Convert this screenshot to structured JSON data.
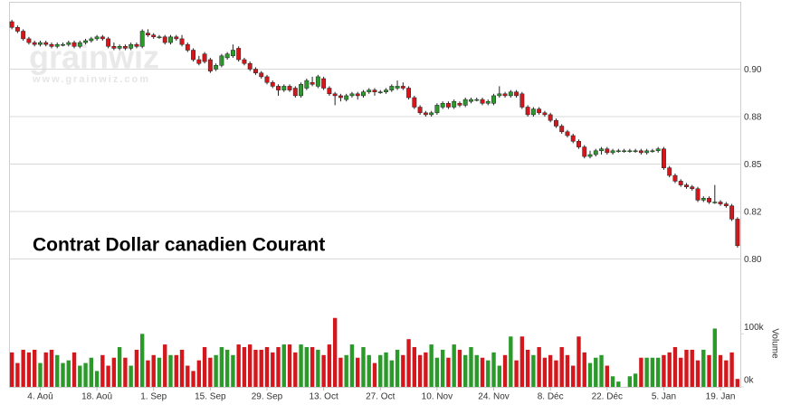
{
  "chart_data": {
    "type": "candlestick",
    "title": "Contrat Dollar canadien Courant",
    "watermark": {
      "logo": "grainwiz",
      "url": "www.grainwiz.com"
    },
    "volume_label": "Volume",
    "up_color": "#2b9a2b",
    "down_color": "#d4171c",
    "ylim": [
      0.775,
      0.935
    ],
    "yticks": [
      {
        "value": 0.8,
        "label": "0.80"
      },
      {
        "value": 0.825,
        "label": "0.82"
      },
      0.85,
      {
        "value": 0.875,
        "label": "0.88"
      },
      {
        "value": 0.9,
        "label": "0.90"
      }
    ],
    "volume_ylim": [
      0,
      150000
    ],
    "volume_ticks": [
      {
        "value": 0,
        "label": "0k"
      },
      {
        "value": 100000,
        "label": "100k"
      }
    ],
    "grid": true,
    "categories": [
      null,
      null,
      null,
      null,
      null,
      "4. Aoû",
      null,
      null,
      null,
      null,
      null,
      null,
      null,
      null,
      null,
      "18. Aoû",
      null,
      null,
      null,
      null,
      null,
      null,
      null,
      null,
      null,
      "1. Sep",
      null,
      null,
      null,
      null,
      null,
      null,
      null,
      null,
      null,
      "15. Sep",
      null,
      null,
      null,
      null,
      null,
      null,
      null,
      null,
      null,
      "29. Sep",
      null,
      null,
      null,
      null,
      null,
      null,
      null,
      null,
      null,
      "13. Oct",
      null,
      null,
      null,
      null,
      null,
      null,
      null,
      null,
      null,
      "27. Oct",
      null,
      null,
      null,
      null,
      null,
      null,
      null,
      null,
      null,
      "10. Nov",
      null,
      null,
      null,
      null,
      null,
      null,
      null,
      null,
      null,
      "24. Nov",
      null,
      null,
      null,
      null,
      null,
      null,
      null,
      null,
      null,
      "8. Déc",
      null,
      null,
      null,
      null,
      null,
      null,
      null,
      null,
      null,
      "22. Déc",
      null,
      null,
      null,
      null,
      null,
      null,
      null,
      null,
      null,
      "5. Jan",
      null,
      null,
      null,
      null,
      null,
      null,
      null,
      null,
      null,
      "19. Jan",
      null,
      null,
      null
    ],
    "ohlc": [
      [
        0.925,
        0.926,
        0.921,
        0.922
      ],
      [
        0.922,
        0.923,
        0.919,
        0.92
      ],
      [
        0.92,
        0.921,
        0.915,
        0.916
      ],
      [
        0.916,
        0.917,
        0.913,
        0.914
      ],
      [
        0.914,
        0.915,
        0.912,
        0.913
      ],
      [
        0.913,
        0.915,
        0.912,
        0.914
      ],
      [
        0.914,
        0.915,
        0.912,
        0.913
      ],
      [
        0.913,
        0.914,
        0.911,
        0.912
      ],
      [
        0.912,
        0.914,
        0.911,
        0.913
      ],
      [
        0.913,
        0.914,
        0.912,
        0.913
      ],
      [
        0.913,
        0.915,
        0.912,
        0.914
      ],
      [
        0.914,
        0.915,
        0.911,
        0.912
      ],
      [
        0.912,
        0.915,
        0.911,
        0.914
      ],
      [
        0.914,
        0.916,
        0.913,
        0.915
      ],
      [
        0.915,
        0.917,
        0.914,
        0.916
      ],
      [
        0.916,
        0.918,
        0.915,
        0.917
      ],
      [
        0.917,
        0.918,
        0.915,
        0.916
      ],
      [
        0.916,
        0.917,
        0.911,
        0.912
      ],
      [
        0.912,
        0.914,
        0.91,
        0.911
      ],
      [
        0.911,
        0.913,
        0.91,
        0.912
      ],
      [
        0.912,
        0.913,
        0.91,
        0.911
      ],
      [
        0.911,
        0.914,
        0.91,
        0.913
      ],
      [
        0.913,
        0.914,
        0.911,
        0.912
      ],
      [
        0.912,
        0.921,
        0.911,
        0.92
      ],
      [
        0.919,
        0.921,
        0.917,
        0.918
      ],
      [
        0.918,
        0.919,
        0.916,
        0.917
      ],
      [
        0.917,
        0.918,
        0.916,
        0.917
      ],
      [
        0.917,
        0.918,
        0.913,
        0.914
      ],
      [
        0.914,
        0.918,
        0.913,
        0.917
      ],
      [
        0.917,
        0.918,
        0.915,
        0.916
      ],
      [
        0.916,
        0.918,
        0.912,
        0.913
      ],
      [
        0.913,
        0.914,
        0.909,
        0.91
      ],
      [
        0.91,
        0.911,
        0.904,
        0.905
      ],
      [
        0.905,
        0.907,
        0.902,
        0.903
      ],
      [
        0.908,
        0.909,
        0.903,
        0.904
      ],
      [
        0.905,
        0.906,
        0.898,
        0.899
      ],
      [
        0.9,
        0.903,
        0.899,
        0.902
      ],
      [
        0.902,
        0.908,
        0.901,
        0.907
      ],
      [
        0.906,
        0.909,
        0.905,
        0.908
      ],
      [
        0.907,
        0.913,
        0.906,
        0.91
      ],
      [
        0.911,
        0.912,
        0.904,
        0.905
      ],
      [
        0.905,
        0.906,
        0.902,
        0.903
      ],
      [
        0.903,
        0.904,
        0.899,
        0.9
      ],
      [
        0.9,
        0.901,
        0.897,
        0.898
      ],
      [
        0.898,
        0.899,
        0.895,
        0.896
      ],
      [
        0.896,
        0.897,
        0.892,
        0.893
      ],
      [
        0.893,
        0.894,
        0.89,
        0.891
      ],
      [
        0.891,
        0.892,
        0.886,
        0.889
      ],
      [
        0.889,
        0.892,
        0.888,
        0.891
      ],
      [
        0.891,
        0.892,
        0.888,
        0.889
      ],
      [
        0.89,
        0.891,
        0.885,
        0.886
      ],
      [
        0.886,
        0.893,
        0.885,
        0.892
      ],
      [
        0.89,
        0.895,
        0.889,
        0.894
      ],
      [
        0.893,
        0.896,
        0.891,
        0.892
      ],
      [
        0.891,
        0.897,
        0.89,
        0.896
      ],
      [
        0.895,
        0.896,
        0.889,
        0.89
      ],
      [
        0.89,
        0.891,
        0.886,
        0.887
      ],
      [
        0.887,
        0.888,
        0.881,
        0.886
      ],
      [
        0.886,
        0.887,
        0.883,
        0.885
      ],
      [
        0.884,
        0.887,
        0.883,
        0.886
      ],
      [
        0.886,
        0.888,
        0.885,
        0.887
      ],
      [
        0.887,
        0.888,
        0.884,
        0.886
      ],
      [
        0.886,
        0.889,
        0.885,
        0.888
      ],
      [
        0.888,
        0.89,
        0.887,
        0.889
      ],
      [
        0.889,
        0.89,
        0.886,
        0.888
      ],
      [
        0.888,
        0.889,
        0.887,
        0.888
      ],
      [
        0.888,
        0.89,
        0.887,
        0.889
      ],
      [
        0.889,
        0.892,
        0.888,
        0.891
      ],
      [
        0.89,
        0.894,
        0.889,
        0.891
      ],
      [
        0.891,
        0.893,
        0.889,
        0.89
      ],
      [
        0.89,
        0.891,
        0.884,
        0.885
      ],
      [
        0.885,
        0.886,
        0.879,
        0.88
      ],
      [
        0.88,
        0.881,
        0.876,
        0.877
      ],
      [
        0.877,
        0.878,
        0.875,
        0.876
      ],
      [
        0.876,
        0.878,
        0.875,
        0.877
      ],
      [
        0.877,
        0.882,
        0.876,
        0.881
      ],
      [
        0.88,
        0.883,
        0.879,
        0.882
      ],
      [
        0.882,
        0.883,
        0.879,
        0.88
      ],
      [
        0.88,
        0.884,
        0.879,
        0.883
      ],
      [
        0.882,
        0.883,
        0.88,
        0.881
      ],
      [
        0.881,
        0.885,
        0.88,
        0.884
      ],
      [
        0.883,
        0.885,
        0.882,
        0.884
      ],
      [
        0.884,
        0.885,
        0.883,
        0.884
      ],
      [
        0.884,
        0.885,
        0.881,
        0.882
      ],
      [
        0.882,
        0.884,
        0.881,
        0.883
      ],
      [
        0.882,
        0.887,
        0.881,
        0.886
      ],
      [
        0.886,
        0.891,
        0.885,
        0.887
      ],
      [
        0.887,
        0.888,
        0.885,
        0.886
      ],
      [
        0.886,
        0.889,
        0.885,
        0.888
      ],
      [
        0.888,
        0.889,
        0.885,
        0.886
      ],
      [
        0.887,
        0.888,
        0.879,
        0.88
      ],
      [
        0.88,
        0.881,
        0.875,
        0.876
      ],
      [
        0.876,
        0.88,
        0.875,
        0.879
      ],
      [
        0.879,
        0.88,
        0.876,
        0.877
      ],
      [
        0.877,
        0.878,
        0.875,
        0.876
      ],
      [
        0.876,
        0.877,
        0.872,
        0.873
      ],
      [
        0.873,
        0.874,
        0.869,
        0.87
      ],
      [
        0.87,
        0.871,
        0.866,
        0.867
      ],
      [
        0.867,
        0.868,
        0.864,
        0.865
      ],
      [
        0.865,
        0.866,
        0.861,
        0.862
      ],
      [
        0.862,
        0.863,
        0.858,
        0.859
      ],
      [
        0.859,
        0.86,
        0.853,
        0.854
      ],
      [
        0.854,
        0.857,
        0.853,
        0.855
      ],
      [
        0.855,
        0.858,
        0.854,
        0.857
      ],
      [
        0.857,
        0.859,
        0.855,
        0.858
      ],
      [
        0.858,
        0.859,
        0.855,
        0.856
      ],
      [
        0.856,
        0.858,
        0.855,
        0.857
      ],
      [
        0.857,
        0.858,
        0.856,
        0.857
      ],
      [
        0.857,
        0.858,
        0.856,
        0.857
      ],
      [
        0.857,
        0.858,
        0.856,
        0.857
      ],
      [
        0.857,
        0.858,
        0.856,
        0.857
      ],
      [
        0.857,
        0.858,
        0.855,
        0.856
      ],
      [
        0.856,
        0.858,
        0.855,
        0.857
      ],
      [
        0.857,
        0.858,
        0.856,
        0.857
      ],
      [
        0.857,
        0.859,
        0.856,
        0.858
      ],
      [
        0.858,
        0.859,
        0.847,
        0.848
      ],
      [
        0.848,
        0.849,
        0.843,
        0.844
      ],
      [
        0.844,
        0.845,
        0.84,
        0.841
      ],
      [
        0.841,
        0.842,
        0.838,
        0.839
      ],
      [
        0.839,
        0.84,
        0.837,
        0.838
      ],
      [
        0.838,
        0.839,
        0.836,
        0.837
      ],
      [
        0.837,
        0.838,
        0.83,
        0.831
      ],
      [
        0.831,
        0.833,
        0.83,
        0.832
      ],
      [
        0.832,
        0.833,
        0.829,
        0.83
      ],
      [
        0.83,
        0.839,
        0.829,
        0.83
      ],
      [
        0.83,
        0.831,
        0.828,
        0.829
      ],
      [
        0.829,
        0.83,
        0.827,
        0.828
      ],
      [
        0.828,
        0.829,
        0.82,
        0.821
      ],
      [
        0.821,
        0.822,
        0.806,
        0.807
      ]
    ],
    "volume": [
      65000,
      45000,
      70000,
      65000,
      70000,
      45000,
      65000,
      70000,
      60000,
      45000,
      50000,
      65000,
      40000,
      45000,
      55000,
      30000,
      60000,
      40000,
      55000,
      75000,
      55000,
      40000,
      70000,
      100000,
      50000,
      60000,
      55000,
      80000,
      60000,
      60000,
      70000,
      40000,
      30000,
      50000,
      75000,
      55000,
      60000,
      75000,
      70000,
      60000,
      80000,
      75000,
      80000,
      70000,
      70000,
      75000,
      65000,
      75000,
      80000,
      80000,
      65000,
      80000,
      75000,
      75000,
      70000,
      60000,
      80000,
      130000,
      55000,
      60000,
      80000,
      55000,
      75000,
      60000,
      45000,
      60000,
      65000,
      50000,
      70000,
      60000,
      90000,
      75000,
      60000,
      65000,
      80000,
      55000,
      70000,
      55000,
      80000,
      70000,
      60000,
      75000,
      60000,
      55000,
      50000,
      65000,
      40000,
      60000,
      95000,
      50000,
      95000,
      70000,
      60000,
      75000,
      55000,
      60000,
      50000,
      75000,
      60000,
      40000,
      95000,
      65000,
      45000,
      55000,
      60000,
      40000,
      20000,
      10000,
      0,
      20000,
      25000,
      55000,
      55000,
      55000,
      55000,
      60000,
      65000,
      75000,
      55000,
      70000,
      70000,
      50000,
      70000,
      60000,
      110000,
      60000,
      50000,
      65000,
      15000
    ]
  }
}
